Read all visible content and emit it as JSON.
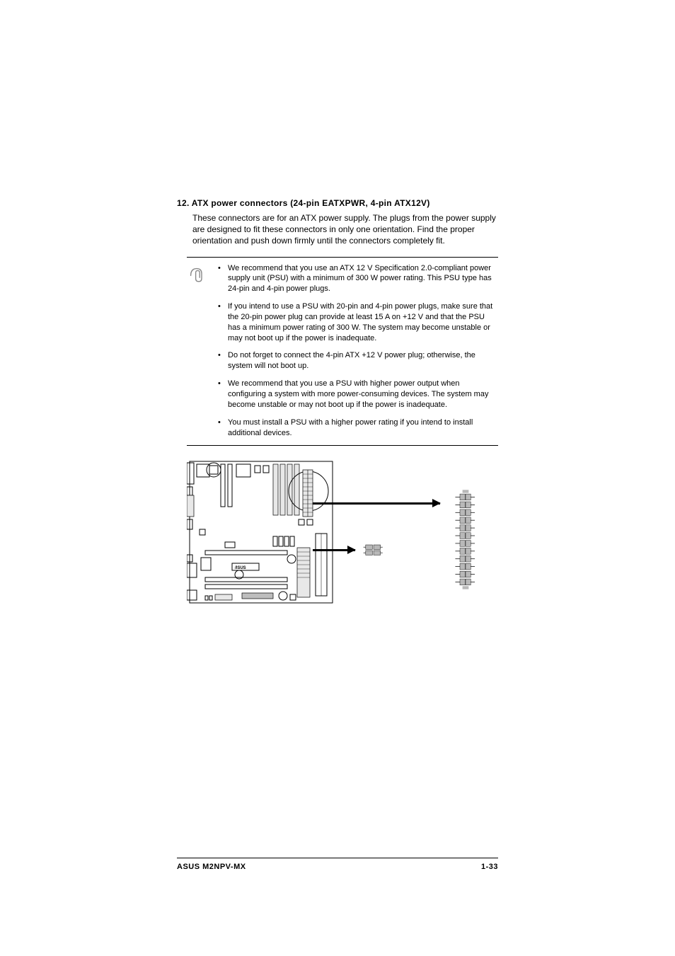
{
  "heading": "12. ATX power connectors (24-pin EATXPWR, 4-pin ATX12V)",
  "intro": "These connectors are for an ATX power supply. The plugs from the power supply are designed to fit these connectors in only one orientation. Find the proper orientation and push down firmly until the connectors completely fit.",
  "notes": [
    "We recommend that you use an ATX 12 V Specification 2.0-compliant power supply unit (PSU) with a minimum of 300 W power rating. This PSU type has 24-pin and 4-pin power plugs.",
    "If you intend to use a PSU with 20-pin and 4-pin power plugs, make sure that the 20-pin power plug can provide at least 15 A on +12 V and that the PSU has a minimum power rating of 300 W. The system may become unstable or may not boot up if the power is inadequate.",
    "Do not forget to connect the 4-pin ATX +12 V power plug; otherwise, the system will not boot up.",
    "We recommend that you use a PSU with higher power output when configuring a system with more power-consuming devices. The system may become unstable or may not boot up if the power is inadequate.",
    "You must install a PSU with a higher power rating if you intend to install additional devices."
  ],
  "footer": {
    "left": "ASUS M2NPV-MX",
    "right": "1-33"
  },
  "diagram": {
    "mobo_logo": "/ISUS",
    "small_conn": {
      "rows": 2,
      "cols": 2
    },
    "big_conn": {
      "rows": 12,
      "cols": 2
    },
    "colors": {
      "outline": "#000000",
      "light": "#e8e8e8",
      "dark": "#bdbdbd",
      "pin_fill": "#b8b8b8"
    }
  }
}
